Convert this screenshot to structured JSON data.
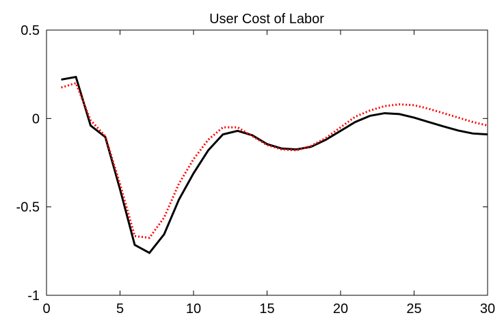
{
  "chart_data": {
    "type": "line",
    "title": "User Cost of Labor",
    "x": [
      1,
      2,
      3,
      4,
      5,
      6,
      7,
      8,
      9,
      10,
      11,
      12,
      13,
      14,
      15,
      16,
      17,
      18,
      19,
      20,
      21,
      22,
      23,
      24,
      25,
      26,
      27,
      28,
      29,
      30
    ],
    "series": [
      {
        "color": "#000000",
        "dash": "solid",
        "values": [
          0.22,
          0.235,
          -0.04,
          -0.105,
          -0.4,
          -0.715,
          -0.76,
          -0.655,
          -0.46,
          -0.31,
          -0.18,
          -0.09,
          -0.07,
          -0.095,
          -0.145,
          -0.17,
          -0.175,
          -0.16,
          -0.12,
          -0.07,
          -0.02,
          0.015,
          0.03,
          0.025,
          0.005,
          -0.02,
          -0.045,
          -0.068,
          -0.085,
          -0.09
        ]
      },
      {
        "color": "#ff0000",
        "dash": "dotted",
        "values": [
          0.175,
          0.2,
          -0.01,
          -0.1,
          -0.37,
          -0.665,
          -0.675,
          -0.56,
          -0.37,
          -0.23,
          -0.12,
          -0.05,
          -0.05,
          -0.1,
          -0.15,
          -0.175,
          -0.18,
          -0.155,
          -0.11,
          -0.05,
          0.01,
          0.045,
          0.07,
          0.08,
          0.075,
          0.055,
          0.03,
          0.005,
          -0.02,
          -0.04
        ]
      }
    ],
    "xlim": [
      0,
      30
    ],
    "xticks": [
      0,
      5,
      10,
      15,
      20,
      25,
      30
    ],
    "ylim": [
      -1,
      0.5
    ],
    "yticks": [
      -1,
      -0.5,
      0,
      0.5
    ],
    "grid": false
  }
}
